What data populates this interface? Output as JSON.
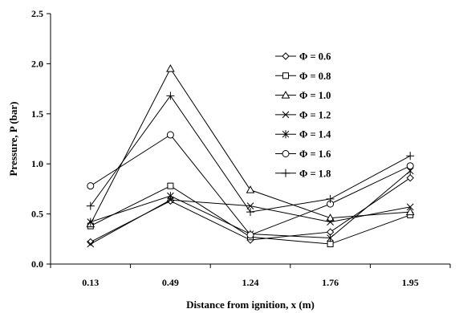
{
  "chart_data": {
    "type": "line",
    "title": "",
    "xlabel": "Distance from ignition, x (m)",
    "ylabel": "Pressure, P (bar)",
    "categories": [
      "0.13",
      "0.49",
      "1.24",
      "1.76",
      "1.95"
    ],
    "ylim": [
      0,
      2.5
    ],
    "yticks": [
      "0.0",
      "0.5",
      "1.0",
      "1.5",
      "2.0",
      "2.5"
    ],
    "grid": false,
    "legend_position": "right",
    "series": [
      {
        "name": "Φ = 0.6",
        "marker": "diamond",
        "values": [
          0.22,
          0.63,
          0.24,
          0.32,
          0.86
        ]
      },
      {
        "name": "Φ = 0.8",
        "marker": "square",
        "values": [
          0.38,
          0.78,
          0.27,
          0.2,
          0.49
        ]
      },
      {
        "name": "Φ = 1.0",
        "marker": "triangle",
        "values": [
          0.4,
          1.95,
          0.74,
          0.46,
          0.52
        ]
      },
      {
        "name": "Φ = 1.2",
        "marker": "x",
        "values": [
          0.2,
          0.64,
          0.58,
          0.42,
          0.57
        ]
      },
      {
        "name": "Φ = 1.4",
        "marker": "star",
        "values": [
          0.42,
          0.68,
          0.3,
          0.26,
          0.93
        ]
      },
      {
        "name": "Φ = 1.6",
        "marker": "circle",
        "values": [
          0.78,
          1.29,
          0.29,
          0.6,
          0.98
        ]
      },
      {
        "name": "Φ = 1.8",
        "marker": "plus",
        "values": [
          0.58,
          1.68,
          0.52,
          0.65,
          1.08
        ]
      }
    ]
  }
}
